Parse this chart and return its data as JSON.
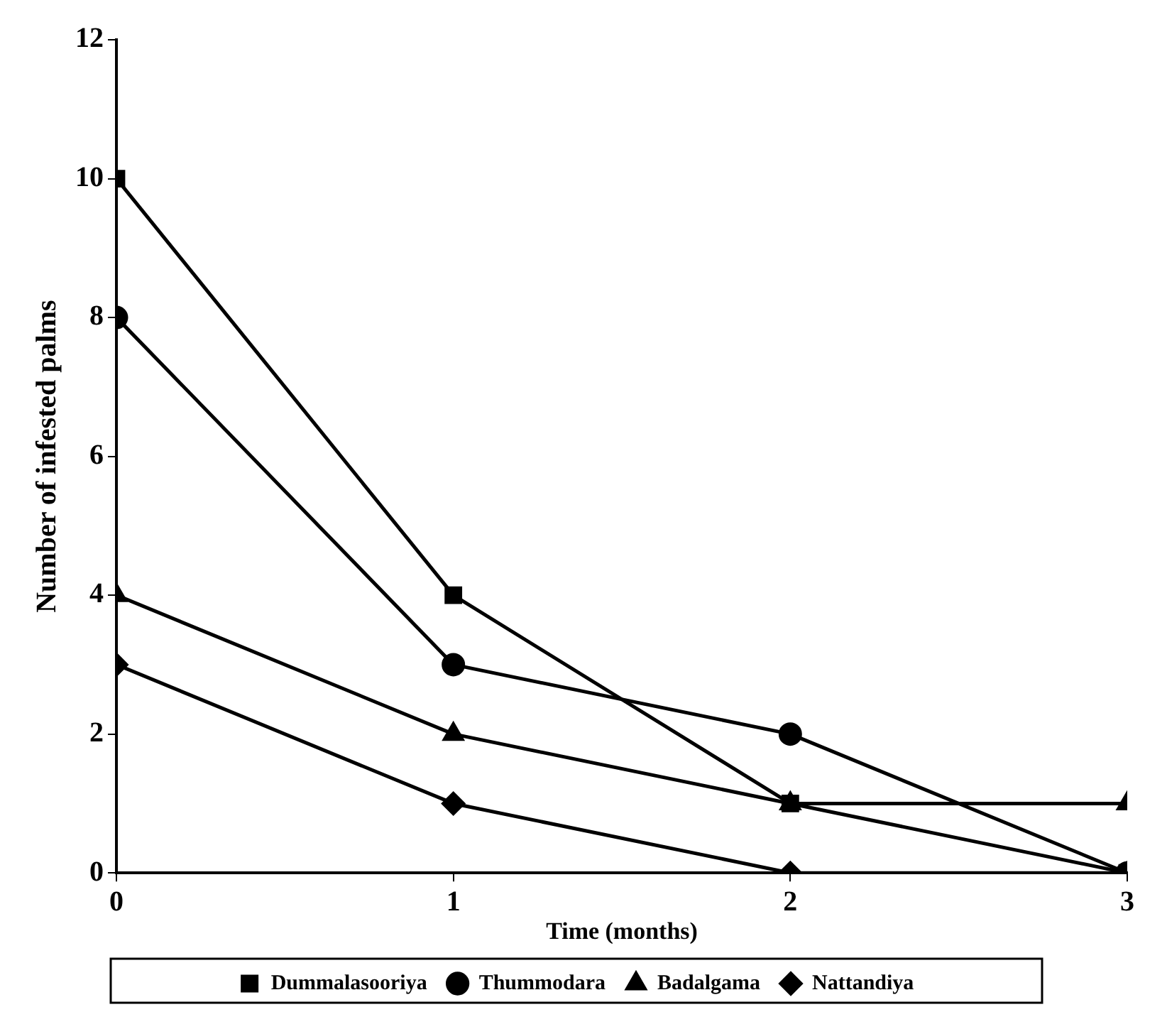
{
  "chart_data": {
    "type": "line",
    "xlabel": "Time (months)",
    "ylabel": "Number of infested palms",
    "x": [
      0,
      1,
      2,
      3
    ],
    "xlim": [
      0,
      3
    ],
    "xticks": [
      0,
      1,
      2,
      3
    ],
    "ylim": [
      0,
      12
    ],
    "yticks": [
      0,
      2,
      4,
      6,
      8,
      10,
      12
    ],
    "grid": false,
    "legend": "bottom",
    "line_style": "solid",
    "series": [
      {
        "name": "Dummalasooriya",
        "color": "#000000",
        "marker": "square",
        "values": [
          10,
          4,
          1,
          0
        ]
      },
      {
        "name": "Thummodara",
        "color": "#000000",
        "marker": "circle",
        "values": [
          8,
          3,
          2,
          0
        ]
      },
      {
        "name": "Badalgama",
        "color": "#000000",
        "marker": "triangle",
        "values": [
          4,
          2,
          1,
          1
        ]
      },
      {
        "name": "Nattandiya",
        "color": "#000000",
        "marker": "diamond",
        "values": [
          3,
          1,
          0,
          0
        ]
      }
    ]
  }
}
